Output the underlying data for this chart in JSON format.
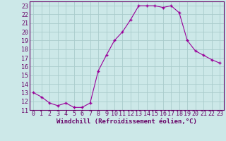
{
  "x": [
    0,
    1,
    2,
    3,
    4,
    5,
    6,
    7,
    8,
    9,
    10,
    11,
    12,
    13,
    14,
    15,
    16,
    17,
    18,
    19,
    20,
    21,
    22,
    23
  ],
  "y": [
    13.0,
    12.5,
    11.8,
    11.5,
    11.8,
    11.3,
    11.3,
    11.8,
    15.5,
    17.3,
    19.0,
    20.0,
    21.4,
    23.0,
    23.0,
    23.0,
    22.8,
    23.0,
    22.2,
    19.0,
    17.8,
    17.3,
    16.8,
    16.4
  ],
  "line_color": "#990099",
  "marker": "+",
  "bg_color": "#cce8e8",
  "grid_color": "#aacccc",
  "xlabel": "Windchill (Refroidissement éolien,°C)",
  "ylim": [
    11,
    23.5
  ],
  "xlim": [
    -0.5,
    23.5
  ],
  "yticks": [
    11,
    12,
    13,
    14,
    15,
    16,
    17,
    18,
    19,
    20,
    21,
    22,
    23
  ],
  "xticks": [
    0,
    1,
    2,
    3,
    4,
    5,
    6,
    7,
    8,
    9,
    10,
    11,
    12,
    13,
    14,
    15,
    16,
    17,
    18,
    19,
    20,
    21,
    22,
    23
  ],
  "xlabel_fontsize": 6.5,
  "tick_fontsize": 6,
  "label_color": "#660066",
  "spine_color": "#660066"
}
